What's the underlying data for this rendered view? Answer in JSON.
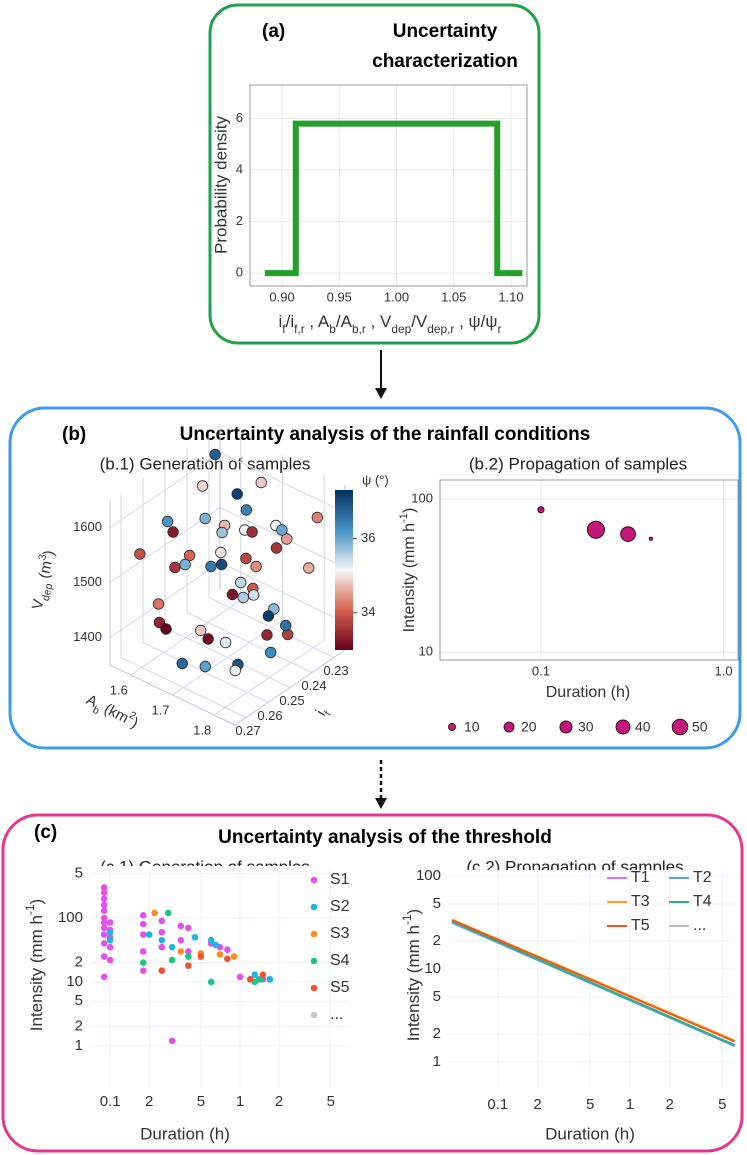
{
  "panels": [
    {
      "label": "(a)",
      "title": [
        "Uncertainty",
        "characterization"
      ]
    },
    {
      "label": "(b)",
      "title": "Uncertainty analysis of the rainfall conditions"
    },
    {
      "label": "(c)",
      "title": "Uncertainty analysis of the threshold"
    }
  ],
  "chart_data": [
    {
      "type": "line",
      "x": [
        0.885,
        0.912,
        0.912,
        1.088,
        1.088,
        1.11
      ],
      "values": [
        0,
        0,
        5.8,
        5.8,
        0,
        0
      ],
      "color": "#22a02a",
      "xlim": [
        0.872,
        1.114
      ],
      "ylim": [
        -0.5,
        7.3
      ],
      "xticks": [
        {
          "value": 0.9,
          "label": "0.90"
        },
        {
          "value": 0.95,
          "label": "0.95"
        },
        {
          "value": 1,
          "label": "1.00"
        },
        {
          "value": 1.05,
          "label": "1.05"
        },
        {
          "value": 1.1,
          "label": "1.10"
        }
      ],
      "yticks": [
        0,
        2,
        4,
        6
      ],
      "grid": true,
      "ylabel": "Probability density",
      "xlabel": [
        "i",
        "f",
        "/i",
        "f,r",
        " , A",
        "b",
        "/A",
        "b,r",
        " , V",
        "dep",
        "/V",
        "dep,r",
        " , ψ/ψ",
        "r"
      ]
    },
    {
      "type": "scatter3d",
      "title": "(b.1) Generation of samples",
      "x": [
        1.57,
        1.6,
        1.62,
        1.64,
        1.66,
        1.68,
        1.7,
        1.72,
        1.74,
        1.76,
        1.78,
        1.8,
        1.82,
        1.58,
        1.61,
        1.63,
        1.65,
        1.67,
        1.69,
        1.71,
        1.73,
        1.75,
        1.77,
        1.79,
        1.81,
        1.83,
        1.59,
        1.62,
        1.64,
        1.66,
        1.68,
        1.7,
        1.72,
        1.74,
        1.76,
        1.78,
        1.8,
        1.82,
        1.6,
        1.65,
        1.7,
        1.75,
        1.8,
        1.63,
        1.67,
        1.71,
        1.77,
        1.84
      ],
      "y": [
        0.231,
        0.262,
        0.245,
        0.27,
        0.238,
        0.255,
        0.228,
        0.266,
        0.249,
        0.234,
        0.258,
        0.242,
        0.268,
        0.252,
        0.236,
        0.264,
        0.229,
        0.247,
        0.272,
        0.24,
        0.257,
        0.233,
        0.261,
        0.246,
        0.23,
        0.255,
        0.269,
        0.227,
        0.25,
        0.263,
        0.235,
        0.244,
        0.271,
        0.239,
        0.253,
        0.266,
        0.232,
        0.248,
        0.259,
        0.243,
        0.237,
        0.267,
        0.251,
        0.256,
        0.229,
        0.262,
        0.241,
        0.273
      ],
      "z": [
        1620,
        1410,
        1560,
        1480,
        1600,
        1390,
        1530,
        1450,
        1630,
        1370,
        1510,
        1580,
        1430,
        1540,
        1470,
        1610,
        1400,
        1500,
        1570,
        1440,
        1620,
        1380,
        1520,
        1460,
        1590,
        1420,
        1550,
        1490,
        1640,
        1360,
        1530,
        1470,
        1600,
        1410,
        1560,
        1450,
        1500,
        1620,
        1390,
        1540,
        1480,
        1580,
        1430,
        1510,
        1600,
        1370,
        1550,
        1440
      ],
      "psi": [
        36.8,
        33.4,
        35.9,
        34.2,
        37.1,
        33.1,
        35.2,
        34.8,
        36.4,
        33.7,
        35.6,
        34.5,
        36.9,
        33.3,
        35.0,
        36.2,
        34.0,
        37.0,
        33.6,
        35.4,
        34.7,
        36.6,
        33.2,
        35.8,
        34.3,
        36.3,
        33.9,
        35.1,
        34.9,
        36.7,
        33.5,
        35.5,
        34.1,
        37.2,
        33.8,
        35.3,
        34.6,
        36.0,
        33.0,
        35.7,
        34.4,
        36.5,
        33.4,
        35.9,
        34.8,
        36.1,
        33.6,
        35.2
      ],
      "xlim": [
        1.55,
        1.85
      ],
      "ylim": [
        0.225,
        0.275
      ],
      "zlim": [
        1350,
        1650
      ],
      "xticks": [
        1.6,
        1.7,
        1.8
      ],
      "yticks": [
        0.23,
        0.24,
        0.25,
        0.26,
        0.27
      ],
      "zticks": [
        1400,
        1500,
        1600
      ],
      "clim": [
        33,
        37.3
      ],
      "cticks": [
        34,
        36
      ],
      "colorscale": [
        "#67001f",
        "#d6604d",
        "#f7f7f7",
        "#4393c3",
        "#053061"
      ],
      "xlabel": [
        "A",
        "b",
        " (km",
        "2",
        ")"
      ],
      "ylabel": [
        "i",
        "f"
      ],
      "zlabel": [
        "V",
        "dep",
        " (m",
        "3",
        ")"
      ],
      "clabel": "ψ (°)"
    },
    {
      "type": "bubble",
      "title": "(b.2) Propagation of samples",
      "x": [
        0.1,
        0.2,
        0.3,
        0.4
      ],
      "values": [
        85,
        63,
        59,
        55
      ],
      "sizes": [
        8,
        60,
        45,
        2
      ],
      "color": "#c2187a",
      "xscale": "log",
      "yscale": "log",
      "xlim": [
        0.028,
        1.2
      ],
      "ylim": [
        8.9,
        133
      ],
      "xticks": [
        0.1,
        {
          "value": 1,
          "label": "1.0"
        }
      ],
      "yticks": [
        10,
        100
      ],
      "grid": true,
      "xlabel": "Duration (h)",
      "ylabel": [
        "Intensity (mm h",
        "-1",
        ")"
      ],
      "legend_sizes": [
        10,
        20,
        30,
        40,
        50
      ]
    },
    {
      "type": "scatter",
      "title": "(c.1) Generation of samples",
      "xscale": "log",
      "yscale": "log",
      "grid": true,
      "xlim": [
        0.07,
        7.03
      ],
      "ylim": [
        0.22,
        650
      ],
      "xticks": [
        0.1,
        {
          "value": 0.2,
          "label": "2"
        },
        {
          "value": 0.5,
          "label": "5"
        },
        1,
        {
          "value": 2,
          "label": "2"
        },
        {
          "value": 5,
          "label": "5"
        }
      ],
      "yticks": [
        1,
        2,
        5,
        10,
        {
          "value": 20,
          "label": "2"
        },
        100,
        {
          "value": 500,
          "label": "5"
        }
      ],
      "xlabel": "Duration (h)",
      "ylabel": [
        "Intensity (mm h",
        "-1",
        ")"
      ],
      "series": [
        {
          "name": "S1",
          "color": "#e052ec",
          "x": [
            0.09,
            0.09,
            0.09,
            0.09,
            0.09,
            0.09,
            0.09,
            0.09,
            0.09,
            0.09,
            0.09,
            0.09,
            0.1,
            0.1,
            0.1,
            0.1,
            0.1,
            0.18,
            0.18,
            0.18,
            0.18,
            0.18,
            0.25,
            0.25,
            0.25,
            0.3,
            0.35,
            0.35,
            0.4,
            0.4,
            0.6,
            0.7,
            0.8,
            1.0,
            1.2,
            1.5,
            1.7
          ],
          "values": [
            300,
            250,
            200,
            160,
            130,
            100,
            85,
            70,
            55,
            40,
            25,
            12,
            85,
            65,
            50,
            35,
            22,
            110,
            80,
            55,
            30,
            15,
            90,
            60,
            35,
            1.2,
            75,
            45,
            70,
            30,
            40,
            35,
            32,
            12,
            11,
            11,
            11
          ]
        },
        {
          "name": "S2",
          "color": "#1fb5e3",
          "x": [
            0.1,
            0.1,
            0.2,
            0.25,
            0.3,
            0.45,
            0.6,
            0.65,
            1.3,
            1.4,
            1.7
          ],
          "values": [
            60,
            45,
            55,
            45,
            35,
            50,
            45,
            38,
            13,
            11,
            11
          ]
        },
        {
          "name": "S3",
          "color": "#ff8a1e",
          "x": [
            0.22,
            0.35,
            0.5,
            0.7,
            0.9
          ],
          "values": [
            120,
            30,
            28,
            27,
            25
          ]
        },
        {
          "name": "S4",
          "color": "#1cc67a",
          "x": [
            0.18,
            0.28,
            0.3,
            0.4,
            0.6,
            1.3,
            1.45
          ],
          "values": [
            20,
            120,
            22,
            25,
            10,
            10,
            11
          ]
        },
        {
          "name": "S5",
          "color": "#f2502e",
          "x": [
            0.25,
            0.4,
            0.5,
            0.8,
            1.2,
            1.5
          ],
          "values": [
            15,
            18,
            25,
            23,
            11,
            13
          ]
        },
        {
          "name": "...",
          "color": "#c8c8c8",
          "x": [],
          "values": []
        }
      ]
    },
    {
      "type": "line",
      "title": "(c.2) Propagation of samples",
      "xscale": "log",
      "yscale": "log",
      "grid": true,
      "xlim": [
        0.042,
        6.24
      ],
      "ylim": [
        0.525,
        116
      ],
      "xticks": [
        0.1,
        {
          "value": 0.2,
          "label": "2"
        },
        {
          "value": 0.5,
          "label": "5"
        },
        1,
        {
          "value": 2,
          "label": "2"
        },
        {
          "value": 5,
          "label": "5"
        }
      ],
      "yticks": [
        1,
        2,
        5,
        10,
        {
          "value": 20,
          "label": "2"
        },
        {
          "value": 50,
          "label": "5"
        },
        100
      ],
      "xlabel": "Duration (h)",
      "ylabel": [
        "Intensity (mm h",
        "-1",
        ")"
      ],
      "series": [
        {
          "name": "T1",
          "color": "#e872e4",
          "x": [
            0.045,
            6.2
          ],
          "values": [
            32,
            1.5
          ]
        },
        {
          "name": "T2",
          "color": "#5b9fe2",
          "x": [
            0.045,
            6.2
          ],
          "values": [
            31.5,
            1.48
          ]
        },
        {
          "name": "T3",
          "color": "#ffa41e",
          "x": [
            0.045,
            6.2
          ],
          "values": [
            34,
            1.7
          ]
        },
        {
          "name": "T4",
          "color": "#2fae7e",
          "x": [
            0.045,
            6.2
          ],
          "values": [
            32.5,
            1.52
          ]
        },
        {
          "name": "T5",
          "color": "#f0561e",
          "x": [
            0.045,
            6.2
          ],
          "values": [
            33.5,
            1.66
          ]
        },
        {
          "name": "...",
          "color": "#b8bccc",
          "x": [],
          "values": []
        }
      ]
    }
  ]
}
